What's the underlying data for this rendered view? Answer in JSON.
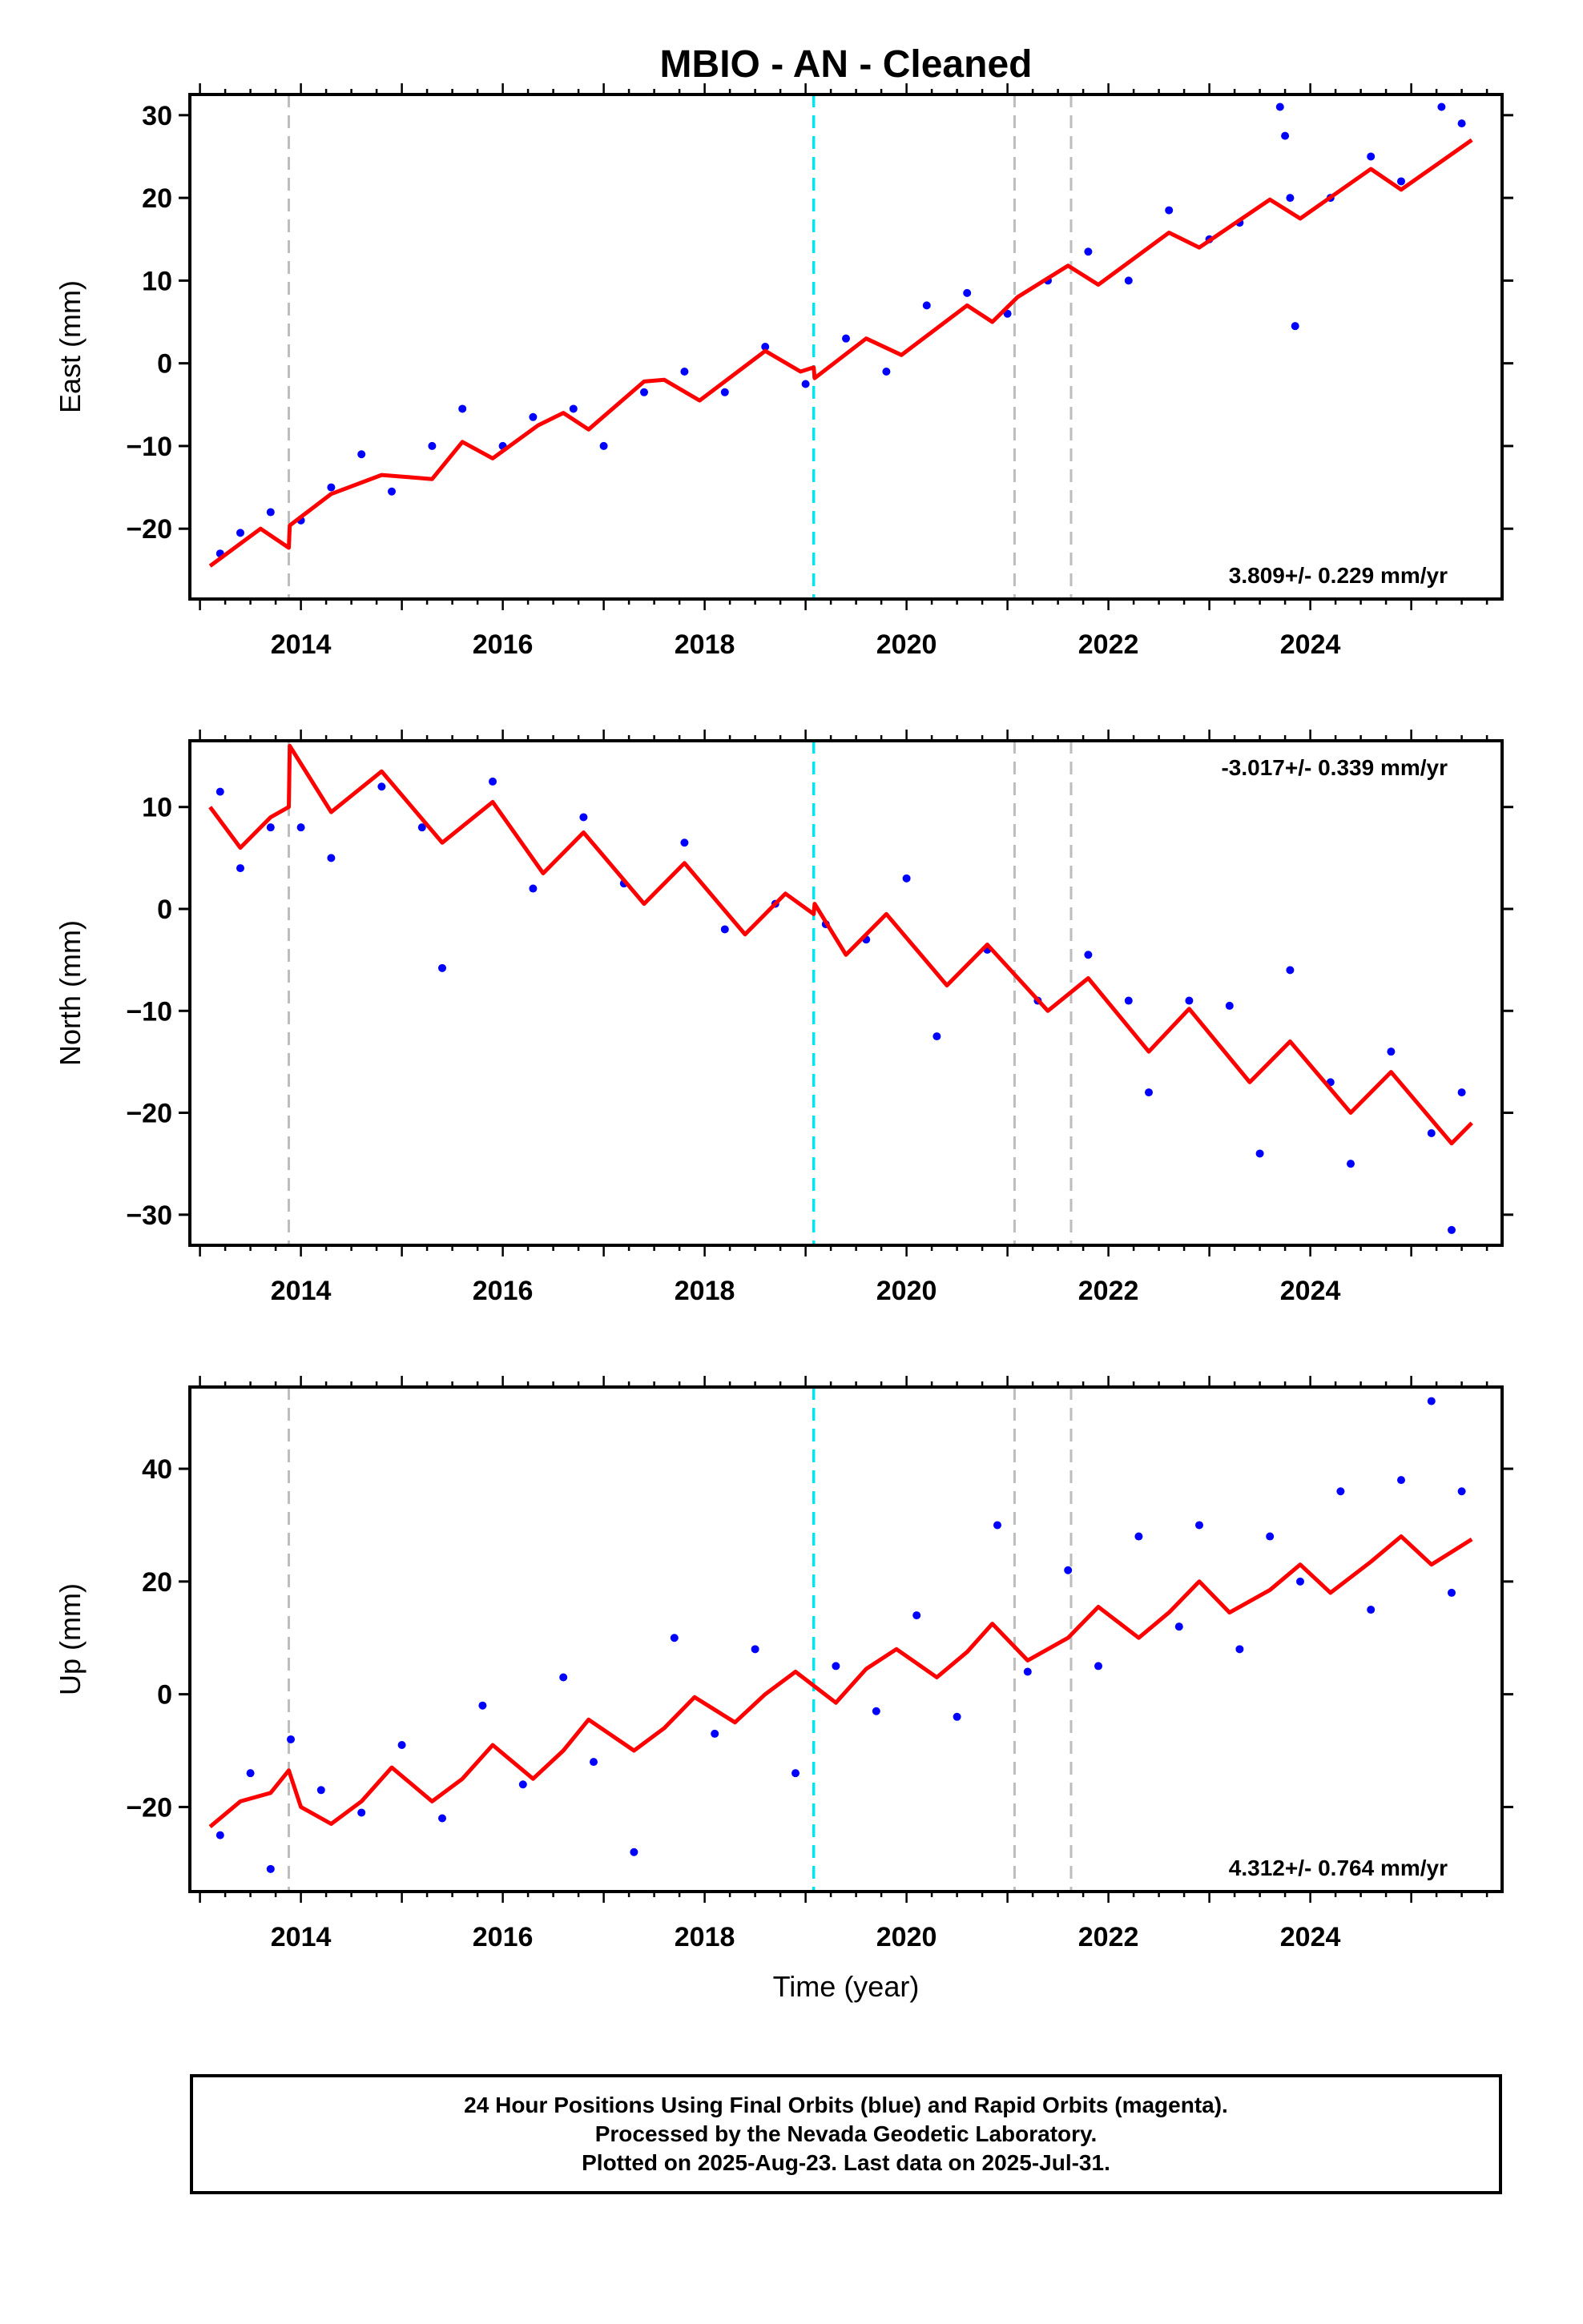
{
  "title": "MBIO  - AN - Cleaned",
  "colors": {
    "final_orbits": "#0000ff",
    "model": "#ff0000",
    "event_line": "#bdbdbd",
    "rapid_line": "#00e5ee"
  },
  "event_years": [
    2013.88,
    2021.07,
    2021.63
  ],
  "cyan_event_year": 2019.08,
  "chart_data": [
    {
      "type": "scatter",
      "xlabel": "",
      "ylabel": "East (mm)",
      "xlim": [
        2012.9,
        2025.9
      ],
      "ylim": [
        -28.5,
        32.5
      ],
      "xticks": [
        2014,
        2016,
        2018,
        2020,
        2022,
        2024
      ],
      "yticks": [
        -20,
        -10,
        0,
        10,
        20,
        30
      ],
      "rate_text": "3.809+/- 0.229 mm/yr",
      "rate_position": "bottom-right",
      "model": {
        "x": [
          2013.1,
          2013.6,
          2013.88,
          2013.89,
          2014.3,
          2014.8,
          2015.3,
          2015.6,
          2015.9,
          2016.35,
          2016.6,
          2016.85,
          2017.4,
          2017.6,
          2017.95,
          2018.6,
          2018.95,
          2019.08,
          2019.09,
          2019.6,
          2019.95,
          2020.6,
          2020.85,
          2021.1,
          2021.6,
          2021.9,
          2022.6,
          2022.9,
          2023.6,
          2023.9,
          2024.6,
          2024.9,
          2025.6
        ],
        "y": [
          -24.5,
          -20.0,
          -22.3,
          -19.6,
          -15.8,
          -13.5,
          -14.0,
          -9.5,
          -11.5,
          -7.5,
          -6.0,
          -8.0,
          -2.2,
          -2.0,
          -4.5,
          1.5,
          -1.0,
          -0.5,
          -1.8,
          3.0,
          1.0,
          7.0,
          5.0,
          8.0,
          11.8,
          9.5,
          15.8,
          14.0,
          19.8,
          17.5,
          23.5,
          21.0,
          27.0
        ]
      },
      "scatter": {
        "x": [
          2013.2,
          2013.4,
          2013.7,
          2014.0,
          2014.3,
          2014.6,
          2014.9,
          2015.3,
          2015.6,
          2016.0,
          2016.3,
          2016.7,
          2017.0,
          2017.4,
          2017.8,
          2018.2,
          2018.6,
          2019.0,
          2019.4,
          2019.8,
          2020.2,
          2020.6,
          2021.0,
          2021.4,
          2021.8,
          2022.2,
          2022.6,
          2023.0,
          2023.3,
          2023.7,
          2023.75,
          2023.8,
          2024.2,
          2024.6,
          2024.9,
          2025.3,
          2025.5,
          2023.85
        ],
        "y": [
          -23.0,
          -20.5,
          -18.0,
          -19.0,
          -15.0,
          -11.0,
          -15.5,
          -10.0,
          -5.5,
          -10.0,
          -6.5,
          -5.5,
          -10.0,
          -3.5,
          -1.0,
          -3.5,
          2.0,
          -2.5,
          3.0,
          -1.0,
          7.0,
          8.5,
          6.0,
          10.0,
          13.5,
          10.0,
          18.5,
          15.0,
          17.0,
          31.0,
          27.5,
          20.0,
          20.0,
          25.0,
          22.0,
          31.0,
          29.0,
          4.5
        ]
      }
    },
    {
      "type": "scatter",
      "xlabel": "",
      "ylabel": "North (mm)",
      "xlim": [
        2012.9,
        2025.9
      ],
      "ylim": [
        -33,
        16.5
      ],
      "xticks": [
        2014,
        2016,
        2018,
        2020,
        2022,
        2024
      ],
      "yticks": [
        -30,
        -20,
        -10,
        0,
        10
      ],
      "rate_text": "-3.017+/- 0.339 mm/yr",
      "rate_position": "top-right",
      "model": {
        "x": [
          2013.1,
          2013.4,
          2013.7,
          2013.88,
          2013.89,
          2014.3,
          2014.8,
          2015.4,
          2015.9,
          2016.4,
          2016.8,
          2017.4,
          2017.8,
          2018.4,
          2018.8,
          2019.08,
          2019.09,
          2019.4,
          2019.8,
          2020.4,
          2020.8,
          2021.4,
          2021.8,
          2022.4,
          2022.8,
          2023.4,
          2023.8,
          2024.4,
          2024.8,
          2025.4,
          2025.6
        ],
        "y": [
          10.0,
          6.0,
          9.0,
          10.0,
          16.0,
          9.5,
          13.5,
          6.5,
          10.5,
          3.5,
          7.5,
          0.5,
          4.5,
          -2.5,
          1.5,
          -0.5,
          0.5,
          -4.5,
          -0.5,
          -7.5,
          -3.5,
          -10.0,
          -6.8,
          -14.0,
          -9.8,
          -17.0,
          -13.0,
          -20.0,
          -16.0,
          -23.0,
          -21.0
        ]
      },
      "scatter": {
        "x": [
          2013.2,
          2013.4,
          2013.7,
          2014.0,
          2014.3,
          2014.8,
          2015.2,
          2015.4,
          2015.9,
          2016.3,
          2016.8,
          2017.2,
          2017.8,
          2018.2,
          2018.7,
          2019.2,
          2019.6,
          2020.0,
          2020.3,
          2020.8,
          2021.3,
          2021.8,
          2022.2,
          2022.4,
          2022.8,
          2023.2,
          2023.5,
          2023.8,
          2024.2,
          2024.4,
          2024.8,
          2025.2,
          2025.4,
          2025.5
        ],
        "y": [
          11.5,
          4.0,
          8.0,
          8.0,
          5.0,
          12.0,
          8.0,
          -5.8,
          12.5,
          2.0,
          9.0,
          2.5,
          6.5,
          -2.0,
          0.5,
          -1.5,
          -3.0,
          3.0,
          -12.5,
          -4.0,
          -9.0,
          -4.5,
          -9.0,
          -18.0,
          -9.0,
          -9.5,
          -24.0,
          -6.0,
          -17.0,
          -25.0,
          -14.0,
          -22.0,
          -31.5,
          -18.0
        ]
      }
    },
    {
      "type": "scatter",
      "xlabel": "Time (year)",
      "ylabel": "Up (mm)",
      "xlim": [
        2012.9,
        2025.9
      ],
      "ylim": [
        -35,
        54.5
      ],
      "xticks": [
        2014,
        2016,
        2018,
        2020,
        2022,
        2024
      ],
      "yticks": [
        -20,
        0,
        20,
        40
      ],
      "rate_text": "4.312+/- 0.764 mm/yr",
      "rate_position": "bottom-right",
      "model": {
        "x": [
          2013.1,
          2013.4,
          2013.7,
          2013.88,
          2014.0,
          2014.3,
          2014.6,
          2014.9,
          2015.3,
          2015.6,
          2015.9,
          2016.3,
          2016.6,
          2016.85,
          2017.3,
          2017.6,
          2017.9,
          2018.3,
          2018.6,
          2018.9,
          2019.3,
          2019.6,
          2019.9,
          2020.3,
          2020.6,
          2020.85,
          2021.2,
          2021.6,
          2021.9,
          2022.3,
          2022.6,
          2022.9,
          2023.2,
          2023.6,
          2023.9,
          2024.2,
          2024.6,
          2024.9,
          2025.2,
          2025.6
        ],
        "y": [
          -23.5,
          -19.0,
          -17.5,
          -13.5,
          -20.0,
          -23.0,
          -19.0,
          -13.0,
          -19.0,
          -15.0,
          -9.0,
          -15.0,
          -10.0,
          -4.5,
          -10.0,
          -6.0,
          -0.5,
          -5.0,
          0.0,
          4.0,
          -1.5,
          4.5,
          8.0,
          3.0,
          7.5,
          12.5,
          6.0,
          10.0,
          15.5,
          10.0,
          14.5,
          20.0,
          14.5,
          18.5,
          23.0,
          18.0,
          23.5,
          28.0,
          23.0,
          27.5
        ]
      },
      "scatter": {
        "x": [
          2013.2,
          2013.5,
          2013.7,
          2013.9,
          2014.2,
          2014.6,
          2015.0,
          2015.4,
          2015.8,
          2016.2,
          2016.6,
          2016.9,
          2017.3,
          2017.7,
          2018.1,
          2018.5,
          2018.9,
          2019.3,
          2019.7,
          2020.1,
          2020.5,
          2020.9,
          2021.2,
          2021.6,
          2021.9,
          2022.3,
          2022.7,
          2022.9,
          2023.3,
          2023.6,
          2023.9,
          2024.3,
          2024.6,
          2024.9,
          2025.2,
          2025.4,
          2025.5
        ],
        "y": [
          -25.0,
          -14.0,
          -31.0,
          -8.0,
          -17.0,
          -21.0,
          -9.0,
          -22.0,
          -2.0,
          -16.0,
          3.0,
          -12.0,
          -28.0,
          10.0,
          -7.0,
          8.0,
          -14.0,
          5.0,
          -3.0,
          14.0,
          -4.0,
          30.0,
          4.0,
          22.0,
          5.0,
          28.0,
          12.0,
          30.0,
          8.0,
          28.0,
          20.0,
          36.0,
          15.0,
          38.0,
          52.0,
          18.0,
          36.0
        ]
      }
    }
  ],
  "footer": {
    "line1": "24 Hour Positions Using Final Orbits (blue) and Rapid Orbits (magenta).",
    "line2": "Processed by the Nevada Geodetic Laboratory.",
    "line3": "Plotted on 2025-Aug-23. Last data on 2025-Jul-31."
  }
}
